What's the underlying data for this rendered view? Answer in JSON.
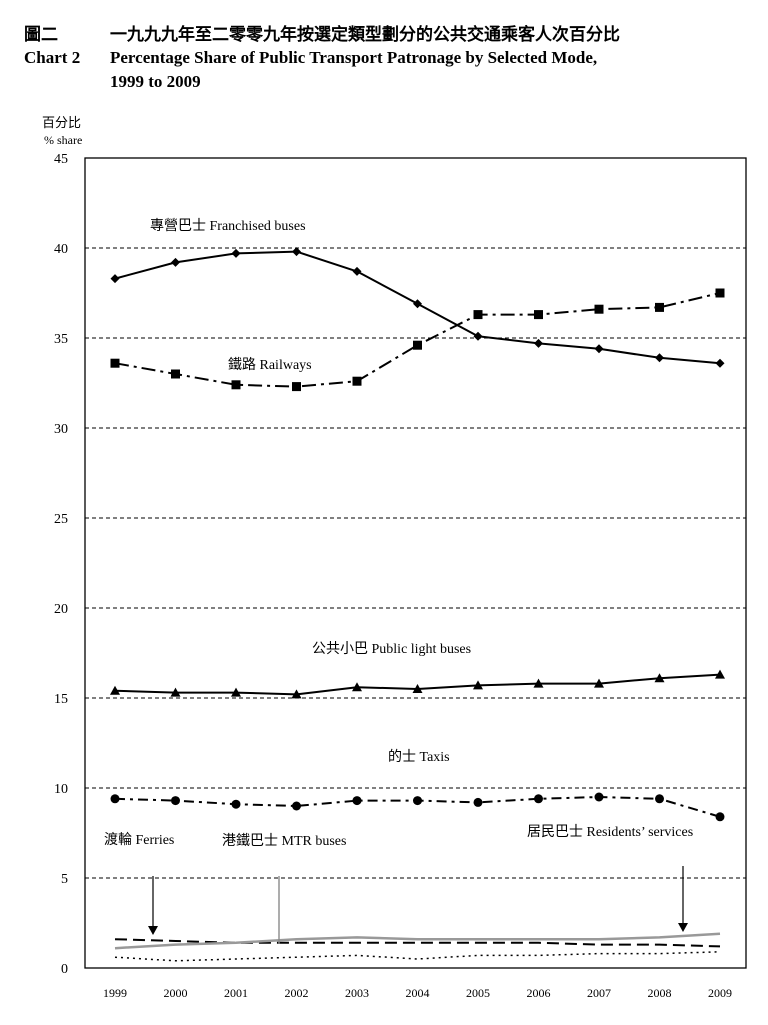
{
  "header": {
    "chart_no_zh": "圖二",
    "title_zh": "一九九九年至二零零九年按選定類型劃分的公共交通乘客人次百分比",
    "chart_no_en": "Chart 2",
    "title_en_line1": "Percentage Share of Public Transport Patronage by Selected Mode,",
    "title_en_line2": "1999 to 2009"
  },
  "chart_data": {
    "type": "line",
    "title": "Percentage Share of Public Transport Patronage by Selected Mode, 1999 to 2009",
    "ylabel_zh": "百分比",
    "ylabel_en": "% share",
    "xlabel": "",
    "ylim": [
      0,
      45
    ],
    "yticks": [
      "0",
      "5",
      "10",
      "15",
      "20",
      "25",
      "30",
      "35",
      "40",
      "45"
    ],
    "grid": true,
    "categories": [
      "1999",
      "2000",
      "2001",
      "2002",
      "2003",
      "2004",
      "2005",
      "2006",
      "2007",
      "2008",
      "2009"
    ],
    "series": [
      {
        "name": "專營巴士 Franchised buses",
        "values": [
          38.3,
          39.2,
          39.7,
          39.8,
          38.7,
          36.9,
          35.1,
          34.7,
          34.4,
          33.9,
          33.6
        ]
      },
      {
        "name": "鐵路 Railways",
        "values": [
          33.6,
          33.0,
          32.4,
          32.3,
          32.6,
          34.6,
          36.3,
          36.3,
          36.6,
          36.7,
          37.5
        ]
      },
      {
        "name": "公共小巴 Public light buses",
        "values": [
          15.4,
          15.3,
          15.3,
          15.2,
          15.6,
          15.5,
          15.7,
          15.8,
          15.8,
          16.1,
          16.3
        ]
      },
      {
        "name": "的士 Taxis",
        "values": [
          9.4,
          9.3,
          9.1,
          9.0,
          9.3,
          9.3,
          9.2,
          9.4,
          9.5,
          9.4,
          8.4
        ]
      },
      {
        "name": "渡輪 Ferries",
        "values": [
          1.6,
          1.5,
          1.4,
          1.4,
          1.4,
          1.4,
          1.4,
          1.4,
          1.3,
          1.3,
          1.2
        ]
      },
      {
        "name": "港鐵巴士 MTR buses",
        "values": [
          1.1,
          1.3,
          1.4,
          1.6,
          1.7,
          1.6,
          1.6,
          1.6,
          1.6,
          1.7,
          1.9
        ]
      },
      {
        "name": "居民巴士 Residents' services",
        "values": [
          0.6,
          0.4,
          0.5,
          0.6,
          0.7,
          0.5,
          0.7,
          0.7,
          0.8,
          0.8,
          0.9
        ]
      }
    ],
    "annotations": {
      "franchised": "專營巴士  Franchised  buses",
      "railways": "鐵路  Railways",
      "plb": "公共小巴  Public  light  buses",
      "taxis": "的士  Taxis",
      "ferries": "渡輪  Ferries",
      "mtr": "港鐵巴士  MTR  buses",
      "residents": "居民巴士  Residents’  services"
    }
  }
}
